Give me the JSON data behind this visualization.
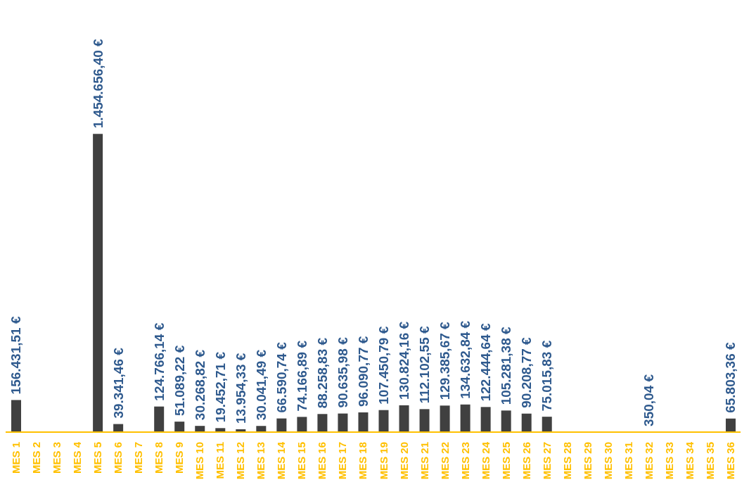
{
  "chart_data": {
    "type": "bar",
    "categories": [
      "MES 1",
      "MES 2",
      "MES 3",
      "MES 4",
      "MES 5",
      "MES 6",
      "MES 7",
      "MES 8",
      "MES 9",
      "MES 10",
      "MES 11",
      "MES 12",
      "MES 13",
      "MES 14",
      "MES 15",
      "MES 16",
      "MES 17",
      "MES 18",
      "MES 19",
      "MES 20",
      "MES 21",
      "MES 22",
      "MES 23",
      "MES 24",
      "MES 25",
      "MES 26",
      "MES 27",
      "MES 28",
      "MES 29",
      "MES 30",
      "MES 31",
      "MES 32",
      "MES 33",
      "MES 34",
      "MES 35",
      "MES 36"
    ],
    "values": [
      156431.51,
      null,
      null,
      null,
      1454656.4,
      39341.46,
      null,
      124766.14,
      51089.22,
      30268.82,
      19452.71,
      13954.33,
      30041.49,
      66590.74,
      74166.89,
      88258.83,
      90635.98,
      96090.77,
      107450.79,
      130824.16,
      112102.55,
      129385.67,
      134632.84,
      122444.64,
      105281.38,
      90208.77,
      75015.83,
      null,
      null,
      null,
      null,
      350.04,
      null,
      null,
      null,
      65803.36
    ],
    "value_labels": [
      "156.431,51 €",
      null,
      null,
      null,
      "1.454.656,40 €",
      "39.341,46 €",
      null,
      "124.766,14 €",
      "51.089,22 €",
      "30.268,82 €",
      "19.452,71 €",
      "13.954,33 €",
      "30.041,49 €",
      "66.590,74 €",
      "74.166,89 €",
      "88.258,83 €",
      "90.635,98 €",
      "96.090,77 €",
      "107.450,79 €",
      "130.824,16 €",
      "112.102,55 €",
      "129.385,67 €",
      "134.632,84 €",
      "122.444,64 €",
      "105.281,38 €",
      "90.208,77 €",
      "75.015,83 €",
      null,
      null,
      null,
      null,
      "350,04 €",
      null,
      null,
      null,
      "65.803,36 €"
    ],
    "color": "#404040"
  }
}
